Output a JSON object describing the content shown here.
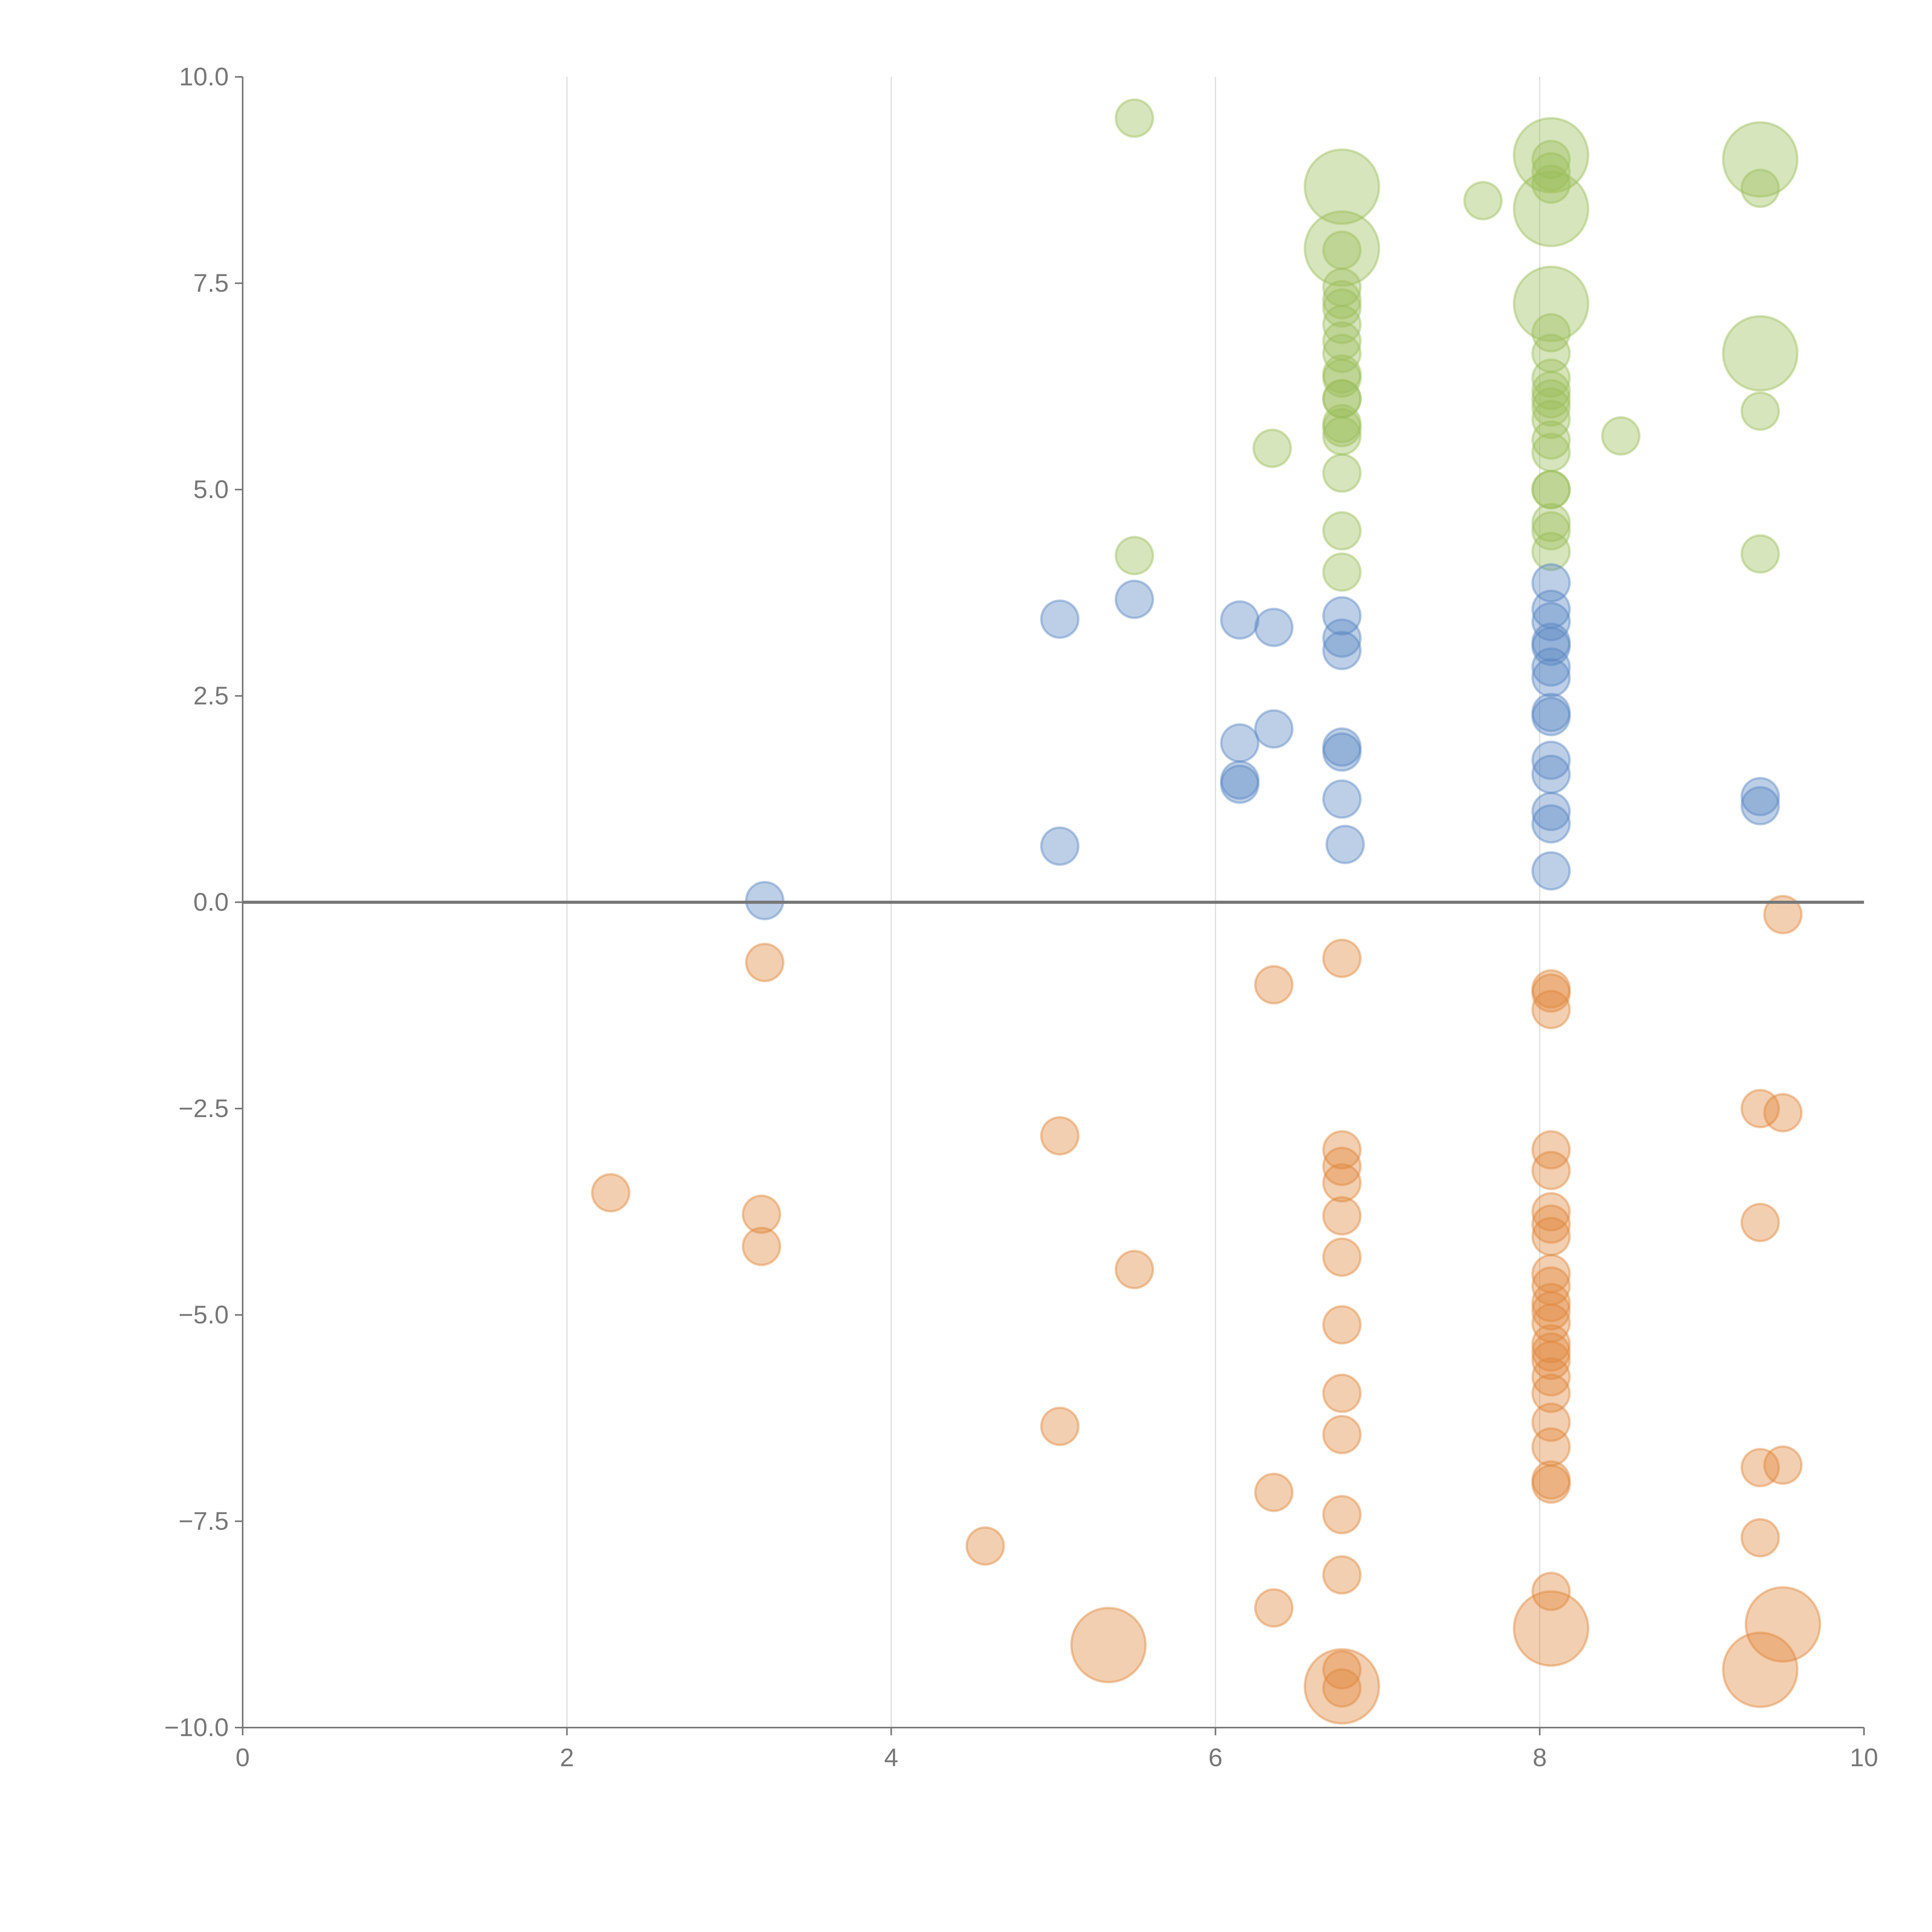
{
  "chart_data": {
    "type": "scatter",
    "title": "",
    "xlabel": "",
    "ylabel": "",
    "xlim": [
      0,
      10
    ],
    "ylim": [
      -10,
      10
    ],
    "grid": "vertical",
    "x_ticks": [
      "0",
      "2",
      "4",
      "6",
      "8",
      "10"
    ],
    "x_tick_values": [
      0,
      2,
      4,
      6,
      8,
      10
    ],
    "y_ticks": [
      "10.0",
      "7.5",
      "5.0",
      "2.5",
      "0.0",
      "−2.5",
      "−5.0",
      "−7.5",
      "−10.0"
    ],
    "y_tick_values": [
      10,
      7.5,
      5,
      2.5,
      0,
      -2.5,
      -5,
      -7.5,
      -10
    ],
    "point_format": "[x, y, relative_size]",
    "series": [
      {
        "name": "green",
        "color": "#9bbf5a",
        "points": [
          [
            5.5,
            9.5,
            1
          ],
          [
            6.35,
            5.5,
            1
          ],
          [
            5.5,
            4.2,
            1
          ],
          [
            6.78,
            8.67,
            2
          ],
          [
            6.78,
            7.92,
            2
          ],
          [
            6.78,
            7.9,
            1
          ],
          [
            6.78,
            7.45,
            1
          ],
          [
            6.78,
            7.3,
            1
          ],
          [
            6.78,
            7.2,
            1
          ],
          [
            6.78,
            7.0,
            1
          ],
          [
            6.78,
            6.8,
            1
          ],
          [
            6.78,
            6.65,
            1
          ],
          [
            6.78,
            6.4,
            1
          ],
          [
            6.78,
            6.35,
            1
          ],
          [
            6.78,
            6.1,
            1
          ],
          [
            6.78,
            6.1,
            1
          ],
          [
            6.78,
            5.8,
            1
          ],
          [
            6.78,
            5.75,
            1
          ],
          [
            6.78,
            5.65,
            1
          ],
          [
            6.78,
            5.2,
            1
          ],
          [
            6.78,
            4.5,
            1
          ],
          [
            6.78,
            4.0,
            1
          ],
          [
            7.65,
            8.5,
            1
          ],
          [
            8.07,
            9.05,
            2
          ],
          [
            8.07,
            8.4,
            2
          ],
          [
            8.07,
            9.0,
            1
          ],
          [
            8.07,
            8.85,
            1
          ],
          [
            8.07,
            8.7,
            1
          ],
          [
            8.07,
            7.25,
            2
          ],
          [
            8.07,
            6.9,
            1
          ],
          [
            8.07,
            6.65,
            1
          ],
          [
            8.07,
            6.35,
            1
          ],
          [
            8.07,
            6.2,
            1
          ],
          [
            8.07,
            6.1,
            1
          ],
          [
            8.07,
            6.0,
            1
          ],
          [
            8.07,
            5.85,
            1
          ],
          [
            8.07,
            5.6,
            1
          ],
          [
            8.07,
            5.45,
            1
          ],
          [
            8.07,
            5.0,
            1
          ],
          [
            8.07,
            5.0,
            1
          ],
          [
            8.07,
            4.6,
            1
          ],
          [
            8.07,
            4.5,
            1
          ],
          [
            8.07,
            4.25,
            1
          ],
          [
            8.5,
            5.65,
            1
          ],
          [
            9.36,
            9.0,
            2
          ],
          [
            9.36,
            8.65,
            1
          ],
          [
            9.36,
            6.65,
            2
          ],
          [
            9.36,
            5.95,
            1
          ],
          [
            9.36,
            4.22,
            1
          ]
        ]
      },
      {
        "name": "blue",
        "color": "#5b87c4",
        "points": [
          [
            3.22,
            0.02,
            1
          ],
          [
            5.04,
            3.43,
            1
          ],
          [
            5.04,
            0.68,
            1
          ],
          [
            5.5,
            3.67,
            1
          ],
          [
            6.15,
            3.42,
            1
          ],
          [
            6.15,
            1.93,
            1
          ],
          [
            6.15,
            1.48,
            1
          ],
          [
            6.15,
            1.43,
            1
          ],
          [
            6.36,
            3.33,
            1
          ],
          [
            6.36,
            2.1,
            1
          ],
          [
            6.78,
            3.47,
            1
          ],
          [
            6.78,
            3.2,
            1
          ],
          [
            6.78,
            3.05,
            1
          ],
          [
            6.78,
            1.88,
            1
          ],
          [
            6.78,
            1.82,
            1
          ],
          [
            6.78,
            1.25,
            1
          ],
          [
            6.8,
            0.7,
            1
          ],
          [
            8.07,
            3.87,
            1
          ],
          [
            8.07,
            3.55,
            1
          ],
          [
            8.07,
            3.4,
            1
          ],
          [
            8.07,
            3.15,
            1
          ],
          [
            8.07,
            3.1,
            1
          ],
          [
            8.07,
            2.85,
            1
          ],
          [
            8.07,
            2.72,
            1
          ],
          [
            8.07,
            2.3,
            1
          ],
          [
            8.07,
            2.25,
            1
          ],
          [
            8.07,
            1.72,
            1
          ],
          [
            8.07,
            1.55,
            1
          ],
          [
            8.07,
            1.1,
            1
          ],
          [
            8.07,
            0.95,
            1
          ],
          [
            8.07,
            0.38,
            1
          ],
          [
            9.36,
            1.28,
            1
          ],
          [
            9.36,
            1.17,
            1
          ]
        ]
      },
      {
        "name": "orange",
        "color": "#e0883c",
        "points": [
          [
            2.27,
            -3.52,
            1
          ],
          [
            3.22,
            -0.73,
            1
          ],
          [
            3.2,
            -3.78,
            1
          ],
          [
            3.2,
            -4.17,
            1
          ],
          [
            4.58,
            -7.8,
            1
          ],
          [
            5.04,
            -2.83,
            1
          ],
          [
            5.04,
            -6.35,
            1
          ],
          [
            5.34,
            -9.0,
            2
          ],
          [
            5.5,
            -4.45,
            1
          ],
          [
            6.36,
            -1.0,
            1
          ],
          [
            6.36,
            -7.15,
            1
          ],
          [
            6.36,
            -8.55,
            1
          ],
          [
            6.78,
            -0.68,
            1
          ],
          [
            6.78,
            -3.0,
            1
          ],
          [
            6.78,
            -3.2,
            1
          ],
          [
            6.78,
            -3.4,
            1
          ],
          [
            6.78,
            -3.8,
            1
          ],
          [
            6.78,
            -4.3,
            1
          ],
          [
            6.78,
            -5.12,
            1
          ],
          [
            6.78,
            -5.95,
            1
          ],
          [
            6.78,
            -6.45,
            1
          ],
          [
            6.78,
            -7.42,
            1
          ],
          [
            6.78,
            -8.15,
            1
          ],
          [
            6.78,
            -9.3,
            1
          ],
          [
            6.78,
            -9.5,
            2
          ],
          [
            6.78,
            -9.52,
            1
          ],
          [
            8.07,
            -1.05,
            1
          ],
          [
            8.07,
            -1.1,
            1
          ],
          [
            8.07,
            -1.3,
            1
          ],
          [
            8.07,
            -3.0,
            1
          ],
          [
            8.07,
            -3.25,
            1
          ],
          [
            8.07,
            -3.75,
            1
          ],
          [
            8.07,
            -3.9,
            1
          ],
          [
            8.07,
            -4.05,
            1
          ],
          [
            8.07,
            -4.5,
            1
          ],
          [
            8.07,
            -4.65,
            1
          ],
          [
            8.07,
            -4.85,
            1
          ],
          [
            8.07,
            -4.95,
            1
          ],
          [
            8.07,
            -5.1,
            1
          ],
          [
            8.07,
            -5.35,
            1
          ],
          [
            8.07,
            -5.45,
            1
          ],
          [
            8.07,
            -5.55,
            1
          ],
          [
            8.07,
            -5.75,
            1
          ],
          [
            8.07,
            -5.95,
            1
          ],
          [
            8.07,
            -6.3,
            1
          ],
          [
            8.07,
            -6.6,
            1
          ],
          [
            8.07,
            -7.0,
            1
          ],
          [
            8.07,
            -7.05,
            1
          ],
          [
            8.07,
            -8.35,
            1
          ],
          [
            8.07,
            -8.8,
            2
          ],
          [
            9.36,
            -2.5,
            1
          ],
          [
            9.36,
            -3.88,
            1
          ],
          [
            9.36,
            -6.85,
            1
          ],
          [
            9.36,
            -7.7,
            1
          ],
          [
            9.36,
            -9.3,
            2
          ],
          [
            9.5,
            -0.15,
            1
          ],
          [
            9.5,
            -2.55,
            1
          ],
          [
            9.5,
            -6.82,
            1
          ],
          [
            9.5,
            -8.75,
            2
          ]
        ]
      }
    ]
  }
}
